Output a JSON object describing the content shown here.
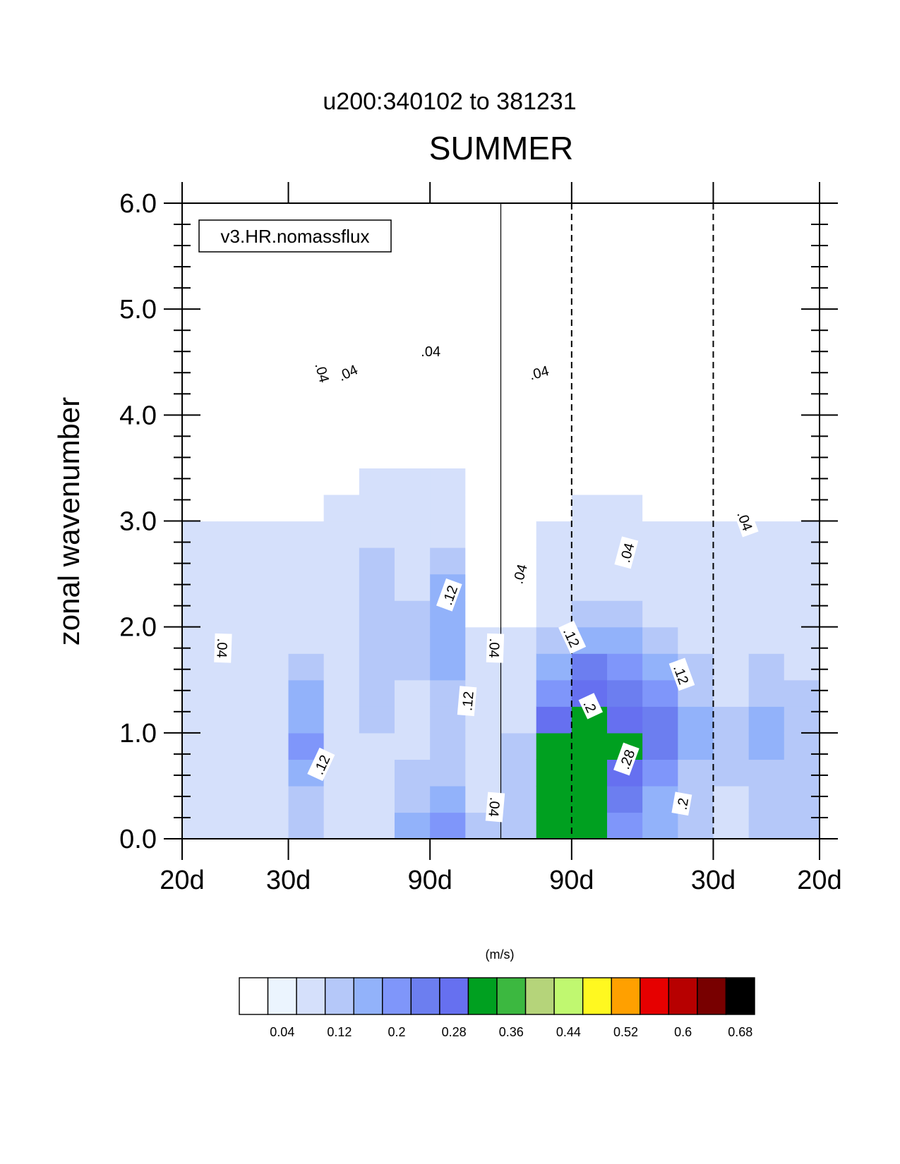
{
  "chart_data": {
    "type": "contour",
    "title": "u200:340102 to 381231",
    "subtitle": "SUMMER",
    "case_label": "v3.HR.nomassflux",
    "ylabel": "zonal wavenumber",
    "ylim": [
      0,
      6
    ],
    "yticks": [
      "0.0",
      "1.0",
      "2.0",
      "3.0",
      "4.0",
      "5.0",
      "6.0"
    ],
    "xlim": [
      -0.5,
      0.5
    ],
    "xticks": [
      {
        "label": "20d",
        "x": -0.5
      },
      {
        "label": "30d",
        "x": -0.3333
      },
      {
        "label": "90d",
        "x": -0.1111
      },
      {
        "label": "90d",
        "x": 0.1111
      },
      {
        "label": "30d",
        "x": 0.3333
      },
      {
        "label": "20d",
        "x": 0.5
      }
    ],
    "dashed_lines_x": [
      0.1111,
      0.3333
    ],
    "solid_line_x": 0,
    "colorbar_unit": "(m/s)",
    "colorbar_labels": [
      "0.04",
      "0.12",
      "0.2",
      "0.28",
      "0.36",
      "0.44",
      "0.52",
      "0.6",
      "0.68"
    ],
    "colorbar_colors": [
      "#ffffff",
      "#ebf4fe",
      "#d5e0fb",
      "#b5c8f9",
      "#92b2fa",
      "#7f96fa",
      "#6c7ef0",
      "#6670f0",
      "#00a020",
      "#3cb840",
      "#b5d47a",
      "#c0f870",
      "#fff820",
      "#ffa000",
      "#e60000",
      "#b70000",
      "#780000",
      "#000000"
    ],
    "contour_labels": [
      {
        "text": ".04",
        "x": -0.437,
        "y": 1.8,
        "angle": 92
      },
      {
        "text": ".04",
        "x": -0.28,
        "y": 4.4,
        "angle": 75
      },
      {
        "text": ".04",
        "x": -0.24,
        "y": 4.4,
        "angle": -25
      },
      {
        "text": ".04",
        "x": -0.11,
        "y": 4.6,
        "angle": 0
      },
      {
        "text": ".12",
        "x": -0.08,
        "y": 2.3,
        "angle": -70
      },
      {
        "text": ".04",
        "x": -0.01,
        "y": 1.8,
        "angle": 92
      },
      {
        "text": ".12",
        "x": -0.052,
        "y": 1.3,
        "angle": -85
      },
      {
        "text": ".12",
        "x": -0.281,
        "y": 0.7,
        "angle": -65
      },
      {
        "text": ".04",
        "x": -0.01,
        "y": 0.3,
        "angle": 95
      },
      {
        "text": ".04",
        "x": 0.03,
        "y": 2.5,
        "angle": -75
      },
      {
        "text": ".04",
        "x": 0.06,
        "y": 4.4,
        "angle": -15
      },
      {
        "text": ".12",
        "x": 0.111,
        "y": 1.9,
        "angle": 65
      },
      {
        "text": ".2",
        "x": 0.14,
        "y": 1.25,
        "angle": 65
      },
      {
        "text": ".28",
        "x": 0.198,
        "y": 0.75,
        "angle": -70
      },
      {
        "text": ".04",
        "x": 0.198,
        "y": 2.7,
        "angle": -75
      },
      {
        "text": ".12",
        "x": 0.283,
        "y": 1.55,
        "angle": 70
      },
      {
        "text": ".2",
        "x": 0.285,
        "y": 0.33,
        "angle": -80
      },
      {
        "text": ".04",
        "x": 0.383,
        "y": 3.0,
        "angle": 70
      }
    ]
  }
}
